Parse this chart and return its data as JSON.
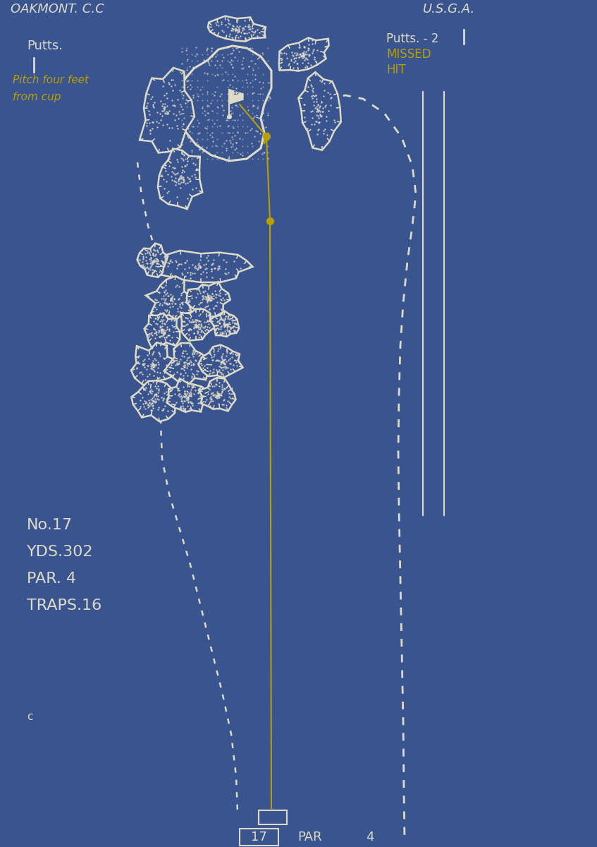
{
  "bg_color": "#3a548f",
  "white_color": "#dddbc8",
  "yellow_color": "#b8a000",
  "title_left": "OAKMONT. C.C",
  "title_right": "U.S.G.A.",
  "text_putts_left": "Putts.",
  "text_pitch_line1": "Pitch four feet",
  "text_pitch_line2": "from cup",
  "text_putts_right": "Putts. - 2",
  "text_missed": "MISSED",
  "text_hit": "HIT",
  "text_no": "No.17",
  "text_yds": "YDS.302",
  "text_par": "PAR. 4",
  "text_traps": "TRAPS.16",
  "text_c": "c",
  "bottom_17": "17",
  "bottom_par": "PAR",
  "bottom_4": "4"
}
